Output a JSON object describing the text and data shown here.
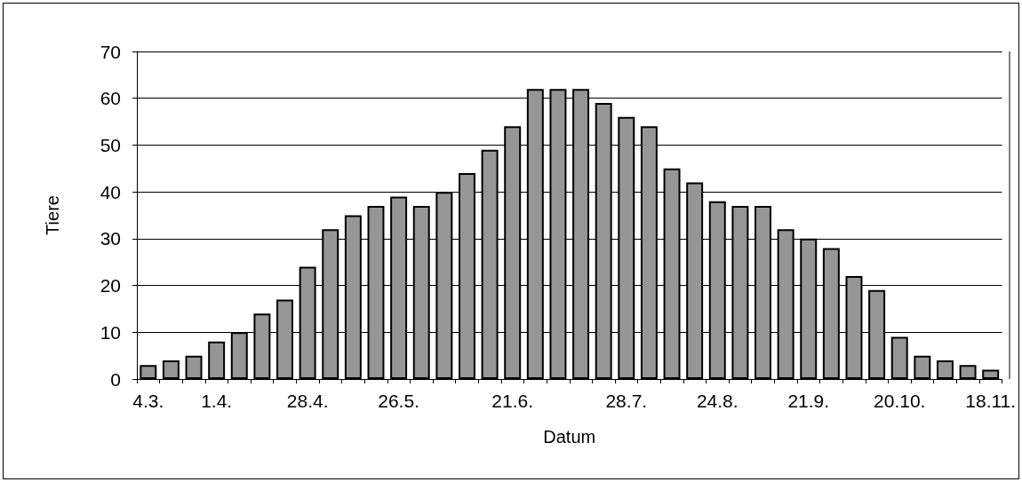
{
  "chart_data": {
    "type": "bar",
    "xlabel": "Datum",
    "ylabel": "Tiere",
    "categories": [
      "4.3.",
      null,
      null,
      "1.4.",
      null,
      null,
      null,
      "28.4.",
      null,
      null,
      null,
      "26.5.",
      null,
      null,
      null,
      null,
      "21.6.",
      null,
      null,
      null,
      null,
      "28.7.",
      null,
      null,
      null,
      "24.8.",
      null,
      null,
      null,
      "21.9.",
      null,
      null,
      null,
      "20.10.",
      null,
      null,
      null,
      "18.11."
    ],
    "values": [
      3,
      4,
      5,
      8,
      10,
      14,
      17,
      24,
      32,
      35,
      37,
      39,
      37,
      40,
      44,
      49,
      54,
      62,
      62,
      62,
      59,
      56,
      54,
      45,
      42,
      38,
      37,
      37,
      32,
      30,
      28,
      22,
      19,
      9,
      5,
      4,
      3,
      2
    ],
    "color": "#969696",
    "ylim": [
      0,
      70
    ],
    "yticks": [
      0,
      10,
      20,
      30,
      40,
      50,
      60,
      70
    ],
    "grid": "y"
  }
}
